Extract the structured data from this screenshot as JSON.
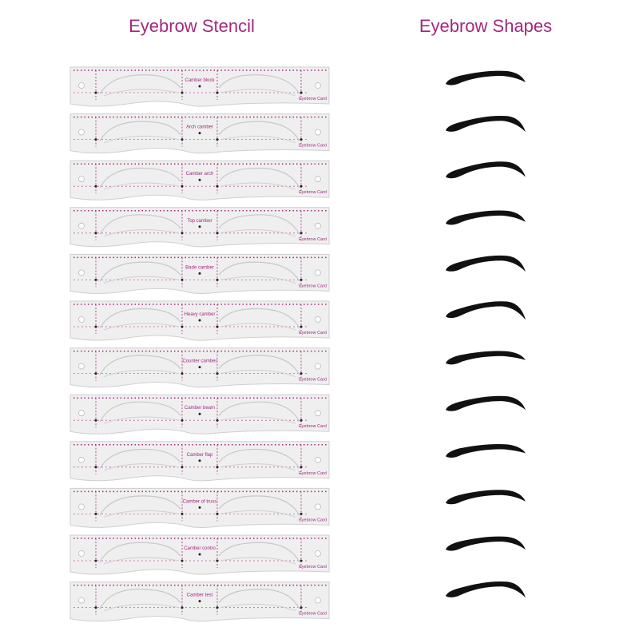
{
  "titles": {
    "stencil": "Eyebrow Stencil",
    "shapes": "Eyebrow Shapes"
  },
  "card_label": "Eyebrow Card",
  "stencils": [
    {
      "name": "Camber block"
    },
    {
      "name": "Arch camber"
    },
    {
      "name": "Camber arch"
    },
    {
      "name": "Top camber"
    },
    {
      "name": "Bade camber"
    },
    {
      "name": "Heavy camber"
    },
    {
      "name": "Counter camber"
    },
    {
      "name": "Camber beam"
    },
    {
      "name": "Camber flap"
    },
    {
      "name": "Camber of truss"
    },
    {
      "name": "Camber contro"
    },
    {
      "name": "Camber test"
    }
  ],
  "colors": {
    "accent": "#a3287f",
    "brow": "#111111",
    "card": "#efefef"
  }
}
